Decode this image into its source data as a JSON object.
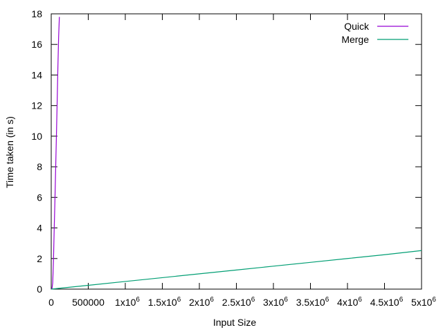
{
  "chart_data": {
    "type": "line",
    "title": "",
    "xlabel": "Input Size",
    "ylabel": "Time taken (in s)",
    "xlim": [
      0,
      5000000
    ],
    "ylim": [
      0,
      18
    ],
    "grid": false,
    "legend_position": "top-right",
    "x_ticks": [
      {
        "value": 0,
        "label": "0",
        "exp": ""
      },
      {
        "value": 500000,
        "label": "500000",
        "exp": ""
      },
      {
        "value": 1000000,
        "label": "1x10",
        "exp": "6"
      },
      {
        "value": 1500000,
        "label": "1.5x10",
        "exp": "6"
      },
      {
        "value": 2000000,
        "label": "2x10",
        "exp": "6"
      },
      {
        "value": 2500000,
        "label": "2.5x10",
        "exp": "6"
      },
      {
        "value": 3000000,
        "label": "3x10",
        "exp": "6"
      },
      {
        "value": 3500000,
        "label": "3.5x10",
        "exp": "6"
      },
      {
        "value": 4000000,
        "label": "4x10",
        "exp": "6"
      },
      {
        "value": 4500000,
        "label": "4.5x10",
        "exp": "6"
      },
      {
        "value": 5000000,
        "label": "5x10",
        "exp": "6"
      }
    ],
    "y_ticks": [
      {
        "value": 0,
        "label": "0"
      },
      {
        "value": 2,
        "label": "2"
      },
      {
        "value": 4,
        "label": "4"
      },
      {
        "value": 6,
        "label": "6"
      },
      {
        "value": 8,
        "label": "8"
      },
      {
        "value": 10,
        "label": "10"
      },
      {
        "value": 12,
        "label": "12"
      },
      {
        "value": 14,
        "label": "14"
      },
      {
        "value": 16,
        "label": "16"
      },
      {
        "value": 18,
        "label": "18"
      }
    ],
    "series": [
      {
        "name": "Quick",
        "color": "#9400d3",
        "points": [
          [
            0,
            0
          ],
          [
            10000,
            0.02
          ],
          [
            20000,
            0.4
          ],
          [
            30000,
            1.8
          ],
          [
            40000,
            3.9
          ],
          [
            50000,
            5.8
          ],
          [
            60000,
            7.9
          ],
          [
            70000,
            10.0
          ],
          [
            80000,
            12.2
          ],
          [
            90000,
            14.5
          ],
          [
            100000,
            16.5
          ],
          [
            110000,
            17.8
          ]
        ]
      },
      {
        "name": "Merge",
        "color": "#009e73",
        "points": [
          [
            0,
            0
          ],
          [
            500000,
            0.25
          ],
          [
            1000000,
            0.5
          ],
          [
            1500000,
            0.75
          ],
          [
            2000000,
            1.0
          ],
          [
            2500000,
            1.25
          ],
          [
            3000000,
            1.5
          ],
          [
            3500000,
            1.75
          ],
          [
            4000000,
            2.0
          ],
          [
            4500000,
            2.25
          ],
          [
            5000000,
            2.52
          ]
        ]
      }
    ]
  }
}
